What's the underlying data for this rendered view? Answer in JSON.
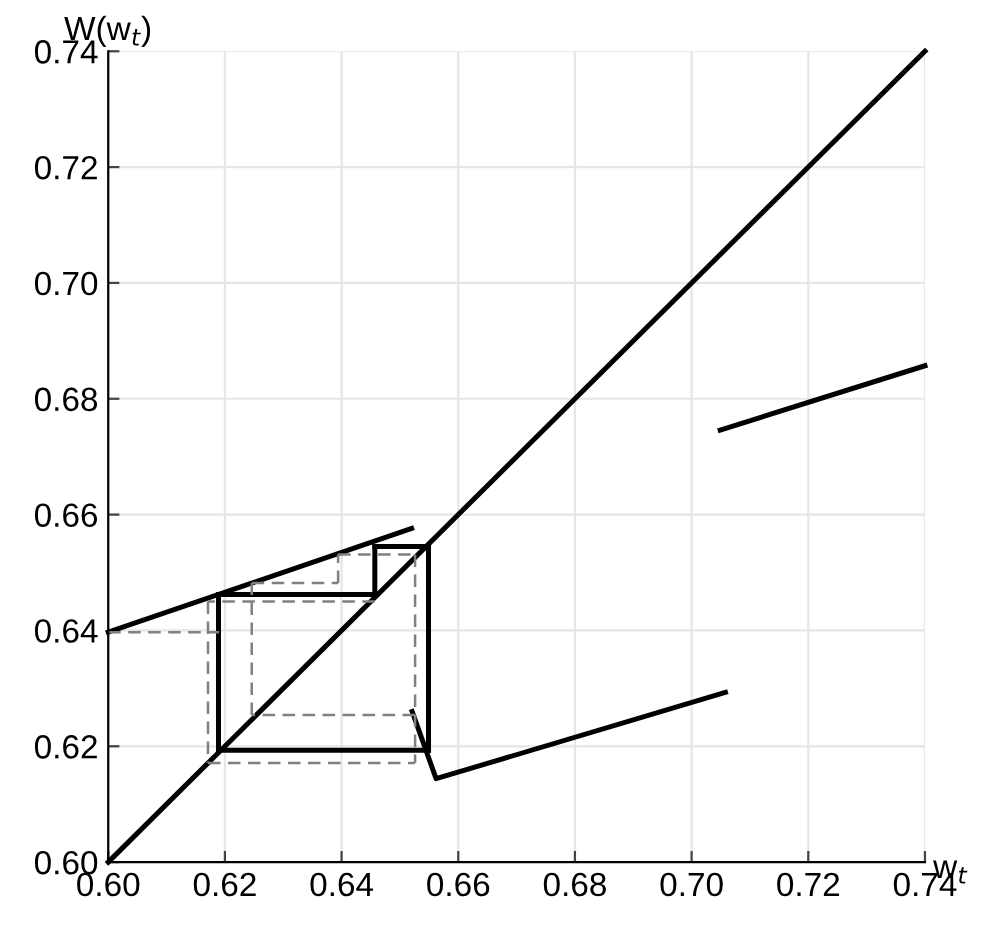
{
  "chart_data": {
    "type": "line",
    "xlabel": "w$_{t}$",
    "ylabel": "W(w$_{t}$)",
    "xlim": [
      0.6,
      0.74
    ],
    "ylim": [
      0.6,
      0.74
    ],
    "xticks": [
      {
        "value": 0.6,
        "label": "0.60"
      },
      0.62,
      0.64,
      0.66,
      0.68,
      {
        "value": 0.7,
        "label": "0.70"
      },
      0.72,
      0.74
    ],
    "yticks": [
      {
        "value": 0.6,
        "label": "0.60"
      },
      0.62,
      0.64,
      0.66,
      0.68,
      {
        "value": 0.7,
        "label": "0.70"
      },
      0.72,
      0.74
    ],
    "grid": true,
    "legend": false,
    "marker": "none",
    "series": [
      {
        "color": "#000000",
        "line_style": "solid",
        "x": [
          0.6,
          0.74
        ],
        "values": [
          0.6,
          0.74
        ]
      },
      {
        "color": "#000000",
        "line_style": "solid",
        "x": [
          0.6,
          0.652
        ],
        "values": [
          0.6397,
          0.6576
        ]
      },
      {
        "color": "#000000",
        "line_style": "solid",
        "x": [
          0.6521,
          0.6562,
          0.7058
        ],
        "values": [
          0.626,
          0.6144,
          0.6293
        ]
      },
      {
        "color": "#000000",
        "line_style": "solid",
        "x": [
          0.7049,
          0.74
        ],
        "values": [
          0.6746,
          0.6857
        ]
      },
      {
        "color": "#000000",
        "line_style": "solid",
        "x": [
          0.6189,
          0.6189
        ],
        "values": [
          0.6193,
          0.6462
        ]
      },
      {
        "color": "#000000",
        "line_style": "solid",
        "x": [
          0.6189,
          0.6457
        ],
        "values": [
          0.6462,
          0.6462
        ]
      },
      {
        "color": "#000000",
        "line_style": "solid",
        "x": [
          0.6457,
          0.6457
        ],
        "values": [
          0.6462,
          0.6545
        ]
      },
      {
        "color": "#000000",
        "line_style": "solid",
        "x": [
          0.6457,
          0.6549
        ],
        "values": [
          0.6545,
          0.6545
        ]
      },
      {
        "color": "#000000",
        "line_style": "solid",
        "x": [
          0.6549,
          0.6549
        ],
        "values": [
          0.6545,
          0.6193
        ]
      },
      {
        "color": "#000000",
        "line_style": "solid",
        "x": [
          0.6549,
          0.6189
        ],
        "values": [
          0.6193,
          0.6193
        ]
      },
      {
        "color": "#808080",
        "line_style": "dashed",
        "x": [
          0.6,
          0.619
        ],
        "values": [
          0.6397,
          0.6397
        ]
      },
      {
        "color": "#808080",
        "line_style": "dashed",
        "x": [
          0.6246,
          0.6246
        ],
        "values": [
          0.6254,
          0.6482
        ]
      },
      {
        "color": "#808080",
        "line_style": "dashed",
        "x": [
          0.6246,
          0.6394
        ],
        "values": [
          0.6482,
          0.6482
        ]
      },
      {
        "color": "#808080",
        "line_style": "dashed",
        "x": [
          0.6394,
          0.6394
        ],
        "values": [
          0.6482,
          0.6531
        ]
      },
      {
        "color": "#808080",
        "line_style": "dashed",
        "x": [
          0.6394,
          0.6526
        ],
        "values": [
          0.6531,
          0.6531
        ]
      },
      {
        "color": "#808080",
        "line_style": "dashed",
        "x": [
          0.6526,
          0.6526
        ],
        "values": [
          0.6531,
          0.6171
        ]
      },
      {
        "color": "#808080",
        "line_style": "dashed",
        "x": [
          0.6526,
          0.6246
        ],
        "values": [
          0.6254,
          0.6254
        ]
      },
      {
        "color": "#808080",
        "line_style": "dashed",
        "x": [
          0.6457,
          0.6171
        ],
        "values": [
          0.645,
          0.645
        ]
      },
      {
        "color": "#808080",
        "line_style": "dashed",
        "x": [
          0.6171,
          0.6171
        ],
        "values": [
          0.645,
          0.6171
        ]
      },
      {
        "color": "#808080",
        "line_style": "dashed",
        "x": [
          0.6171,
          0.6526
        ],
        "values": [
          0.6171,
          0.6171
        ]
      }
    ]
  }
}
